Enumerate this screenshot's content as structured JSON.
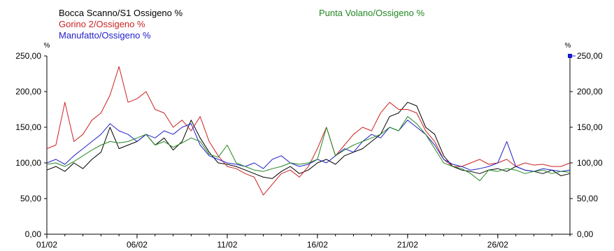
{
  "chart_data": {
    "type": "line",
    "title": "",
    "y_unit_left": "%",
    "y_unit_right": "%",
    "ylim": [
      0,
      250
    ],
    "y_ticks": [
      "0,00",
      "50,00",
      "100,00",
      "150,00",
      "200,00",
      "250,00"
    ],
    "x_range_days": [
      1,
      30
    ],
    "x_ticks": [
      {
        "day": 1,
        "label": "01/02"
      },
      {
        "day": 6,
        "label": "06/02"
      },
      {
        "day": 11,
        "label": "11/02"
      },
      {
        "day": 16,
        "label": "16/02"
      },
      {
        "day": 21,
        "label": "21/02"
      },
      {
        "day": 26,
        "label": "26/02"
      }
    ],
    "grid": false,
    "legend_placement": "top-left",
    "series": [
      {
        "name": "Bocca Scanno/S1 Ossigeno %",
        "color": "#000000",
        "x": [
          1.0,
          1.5,
          2.0,
          2.5,
          3.0,
          3.5,
          4.0,
          4.5,
          5.0,
          5.5,
          6.0,
          6.5,
          7.0,
          7.5,
          8.0,
          8.5,
          9.0,
          9.5,
          10.0,
          10.5,
          11.0,
          11.5,
          12.0,
          12.5,
          13.0,
          13.5,
          14.0,
          14.5,
          15.0,
          15.5,
          16.0,
          16.5,
          17.0,
          17.5,
          18.0,
          18.5,
          19.0,
          19.5,
          20.0,
          20.5,
          21.0,
          21.5,
          22.0,
          22.5,
          23.0,
          23.5,
          24.0,
          24.5,
          25.0,
          25.5,
          26.0,
          26.5,
          27.0,
          27.5,
          28.0,
          28.5,
          29.0,
          29.5,
          30.0
        ],
        "y": [
          90,
          95,
          88,
          100,
          92,
          105,
          115,
          150,
          120,
          125,
          130,
          140,
          125,
          135,
          118,
          130,
          160,
          135,
          115,
          100,
          98,
          95,
          90,
          85,
          80,
          78,
          88,
          95,
          85,
          90,
          100,
          105,
          98,
          110,
          115,
          120,
          130,
          140,
          165,
          170,
          185,
          180,
          150,
          140,
          110,
          95,
          90,
          88,
          85,
          90,
          92,
          88,
          95,
          90,
          88,
          85,
          90,
          82,
          85
        ]
      },
      {
        "name": "Gorino 2/Ossigeno %",
        "color": "#cc2222",
        "x": [
          1.0,
          1.5,
          2.0,
          2.5,
          3.0,
          3.5,
          4.0,
          4.5,
          5.0,
          5.5,
          6.0,
          6.5,
          7.0,
          7.5,
          8.0,
          8.5,
          9.0,
          9.5,
          10.0,
          10.5,
          11.0,
          11.5,
          12.0,
          12.5,
          13.0,
          13.5,
          14.0,
          14.5,
          15.0,
          15.5,
          16.0,
          16.5,
          17.0,
          17.5,
          18.0,
          18.5,
          19.0,
          19.5,
          20.0,
          20.5,
          21.0,
          21.5,
          22.0,
          22.5,
          23.0,
          23.5,
          24.0,
          24.5,
          25.0,
          25.5,
          26.0,
          26.5,
          27.0,
          27.5,
          28.0,
          28.5,
          29.0,
          29.5,
          30.0
        ],
        "y": [
          120,
          125,
          185,
          130,
          140,
          160,
          170,
          195,
          235,
          185,
          190,
          200,
          175,
          170,
          150,
          160,
          145,
          165,
          130,
          110,
          95,
          92,
          85,
          80,
          55,
          70,
          85,
          90,
          80,
          95,
          120,
          150,
          110,
          125,
          140,
          150,
          145,
          170,
          185,
          175,
          175,
          170,
          145,
          130,
          105,
          95,
          95,
          100,
          105,
          98,
          100,
          105,
          95,
          100,
          97,
          98,
          95,
          95,
          100
        ]
      },
      {
        "name": "Manufatto/Ossigeno %",
        "color": "#2222cc",
        "x": [
          1.0,
          1.5,
          2.0,
          2.5,
          3.0,
          3.5,
          4.0,
          4.5,
          5.0,
          5.5,
          6.0,
          6.5,
          7.0,
          7.5,
          8.0,
          8.5,
          9.0,
          9.5,
          10.0,
          10.5,
          11.0,
          11.5,
          12.0,
          12.5,
          13.0,
          13.5,
          14.0,
          14.5,
          15.0,
          15.5,
          16.0,
          16.5,
          17.0,
          17.5,
          18.0,
          18.5,
          19.0,
          19.5,
          20.0,
          20.5,
          21.0,
          21.5,
          22.0,
          22.5,
          23.0,
          23.5,
          24.0,
          24.5,
          25.0,
          25.5,
          26.0,
          26.5,
          27.0,
          27.5,
          28.0,
          28.5,
          29.0,
          29.5,
          30.0
        ],
        "y": [
          100,
          105,
          98,
          110,
          120,
          130,
          140,
          155,
          145,
          140,
          130,
          140,
          135,
          145,
          140,
          150,
          155,
          125,
          110,
          105,
          100,
          98,
          95,
          100,
          92,
          105,
          110,
          100,
          95,
          98,
          105,
          100,
          110,
          120,
          115,
          130,
          140,
          135,
          150,
          145,
          160,
          150,
          140,
          125,
          105,
          98,
          95,
          90,
          92,
          95,
          100,
          130,
          95,
          90,
          88,
          92,
          90,
          88,
          90
        ]
      },
      {
        "name": "Punta Volano/Ossigeno %",
        "color": "#228822",
        "x": [
          1.0,
          1.5,
          2.0,
          2.5,
          3.0,
          3.5,
          4.0,
          4.5,
          5.0,
          5.5,
          6.0,
          6.5,
          7.0,
          7.5,
          8.0,
          8.5,
          9.0,
          9.5,
          10.0,
          10.5,
          11.0,
          11.5,
          12.0,
          12.5,
          13.0,
          13.5,
          14.0,
          14.5,
          15.0,
          15.5,
          16.0,
          16.5,
          17.0,
          17.5,
          18.0,
          18.5,
          19.0,
          19.5,
          20.0,
          20.5,
          21.0,
          21.5,
          22.0,
          22.5,
          23.0,
          23.5,
          24.0,
          24.5,
          25.0,
          25.5,
          26.0,
          26.5,
          27.0,
          27.5,
          28.0,
          28.5,
          29.0,
          29.5,
          30.0
        ],
        "y": [
          98,
          100,
          95,
          102,
          110,
          118,
          125,
          130,
          128,
          130,
          135,
          140,
          125,
          130,
          122,
          128,
          135,
          130,
          112,
          108,
          125,
          100,
          95,
          90,
          88,
          92,
          95,
          100,
          98,
          100,
          105,
          150,
          110,
          118,
          125,
          130,
          135,
          140,
          150,
          145,
          165,
          155,
          140,
          120,
          100,
          95,
          92,
          85,
          75,
          90,
          88,
          92,
          90,
          85,
          88,
          90,
          85,
          88,
          87
        ]
      }
    ],
    "marker_right": {
      "y": 250,
      "color": "#1a1acc"
    }
  }
}
